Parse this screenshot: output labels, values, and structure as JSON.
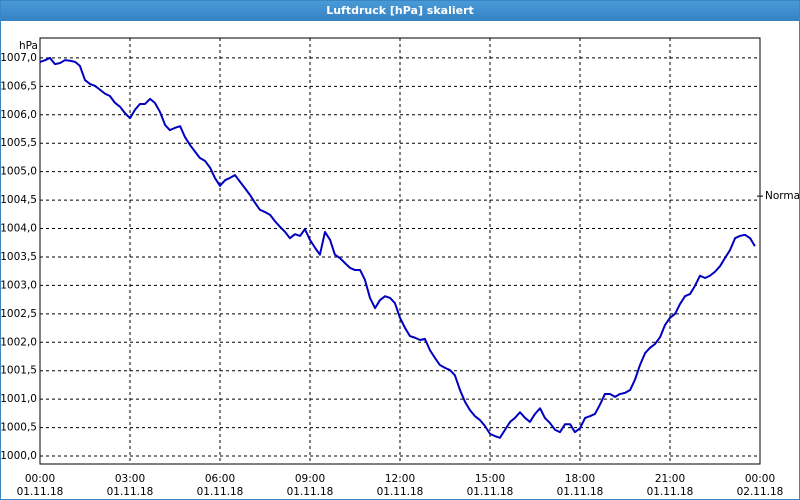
{
  "chart_data": {
    "type": "line",
    "window_title": "Luftdruck [hPa] skaliert",
    "y_label": "hPa",
    "annotation": {
      "label": "Normal",
      "value": 1004.57
    },
    "xlim": [
      0,
      24
    ],
    "ylim": [
      999.86,
      1007.35
    ],
    "grid": true,
    "xticks": [
      {
        "value": 0,
        "label": "00:00",
        "date": "01.11.18"
      },
      {
        "value": 3,
        "label": "03:00",
        "date": "01.11.18"
      },
      {
        "value": 6,
        "label": "06:00",
        "date": "01.11.18"
      },
      {
        "value": 9,
        "label": "09:00",
        "date": "01.11.18"
      },
      {
        "value": 12,
        "label": "12:00",
        "date": "01.11.18"
      },
      {
        "value": 15,
        "label": "15:00",
        "date": "01.11.18"
      },
      {
        "value": 18,
        "label": "18:00",
        "date": "01.11.18"
      },
      {
        "value": 21,
        "label": "21:00",
        "date": "01.11.18"
      },
      {
        "value": 24,
        "label": "00:00",
        "date": "02.11.18"
      }
    ],
    "yticks": [
      {
        "value": 1000,
        "label": "1000,0"
      },
      {
        "value": 1000.5,
        "label": "1000,5"
      },
      {
        "value": 1001,
        "label": "1001,0"
      },
      {
        "value": 1001.5,
        "label": "1001,5"
      },
      {
        "value": 1002,
        "label": "1002,0"
      },
      {
        "value": 1002.5,
        "label": "1002,5"
      },
      {
        "value": 1003,
        "label": "1003,0"
      },
      {
        "value": 1003.5,
        "label": "1003,5"
      },
      {
        "value": 1004,
        "label": "1004,0"
      },
      {
        "value": 1004.5,
        "label": "1004,5"
      },
      {
        "value": 1005,
        "label": "1005,0"
      },
      {
        "value": 1005.5,
        "label": "1005,5"
      },
      {
        "value": 1006,
        "label": "1006,0"
      },
      {
        "value": 1006.5,
        "label": "1006,5"
      },
      {
        "value": 1007,
        "label": "1007,0"
      }
    ],
    "x": [
      0,
      0.17,
      0.33,
      0.5,
      0.67,
      0.83,
      1,
      1.17,
      1.33,
      1.5,
      1.67,
      1.83,
      2,
      2.17,
      2.33,
      2.5,
      2.67,
      2.83,
      3,
      3.17,
      3.33,
      3.5,
      3.67,
      3.83,
      4,
      4.17,
      4.33,
      4.5,
      4.67,
      4.83,
      5,
      5.17,
      5.33,
      5.5,
      5.67,
      5.83,
      6,
      6.17,
      6.33,
      6.5,
      6.67,
      6.83,
      7,
      7.17,
      7.33,
      7.5,
      7.67,
      7.83,
      8,
      8.17,
      8.33,
      8.5,
      8.67,
      8.83,
      9,
      9.17,
      9.33,
      9.5,
      9.67,
      9.83,
      10,
      10.17,
      10.33,
      10.5,
      10.67,
      10.83,
      11,
      11.17,
      11.33,
      11.5,
      11.67,
      11.83,
      12,
      12.17,
      12.33,
      12.5,
      12.67,
      12.83,
      13,
      13.17,
      13.33,
      13.5,
      13.67,
      13.83,
      14,
      14.17,
      14.33,
      14.5,
      14.67,
      14.83,
      15,
      15.17,
      15.33,
      15.5,
      15.67,
      15.83,
      16,
      16.17,
      16.33,
      16.5,
      16.67,
      16.83,
      17,
      17.17,
      17.33,
      17.5,
      17.67,
      17.83,
      18,
      18.17,
      18.33,
      18.5,
      18.67,
      18.83,
      19,
      19.17,
      19.33,
      19.5,
      19.67,
      19.83,
      20,
      20.17,
      20.33,
      20.5,
      20.67,
      20.83,
      21,
      21.17,
      21.33,
      21.5,
      21.67,
      21.83,
      22,
      22.17,
      22.33,
      22.5,
      22.67,
      22.83,
      23,
      23.17,
      23.33,
      23.5,
      23.67,
      23.83
    ],
    "series": [
      {
        "color": "#0000c0",
        "values": [
          1006.93,
          1006.96,
          1007.0,
          1006.89,
          1006.91,
          1006.96,
          1006.95,
          1006.93,
          1006.86,
          1006.61,
          1006.54,
          1006.51,
          1006.44,
          1006.37,
          1006.33,
          1006.21,
          1006.14,
          1006.03,
          1005.94,
          1006.09,
          1006.19,
          1006.19,
          1006.28,
          1006.21,
          1006.05,
          1005.82,
          1005.73,
          1005.77,
          1005.8,
          1005.61,
          1005.47,
          1005.35,
          1005.24,
          1005.19,
          1005.07,
          1004.89,
          1004.75,
          1004.85,
          1004.89,
          1004.94,
          1004.82,
          1004.71,
          1004.59,
          1004.45,
          1004.33,
          1004.29,
          1004.24,
          1004.13,
          1004.03,
          1003.94,
          1003.83,
          1003.9,
          1003.87,
          1003.99,
          1003.8,
          1003.66,
          1003.54,
          1003.94,
          1003.8,
          1003.54,
          1003.48,
          1003.39,
          1003.31,
          1003.27,
          1003.27,
          1003.1,
          1002.78,
          1002.6,
          1002.74,
          1002.81,
          1002.78,
          1002.69,
          1002.43,
          1002.25,
          1002.11,
          1002.08,
          1002.04,
          1002.06,
          1001.86,
          1001.72,
          1001.6,
          1001.55,
          1001.51,
          1001.42,
          1001.16,
          1000.95,
          1000.81,
          1000.7,
          1000.63,
          1000.53,
          1000.39,
          1000.35,
          1000.32,
          1000.46,
          1000.6,
          1000.67,
          1000.77,
          1000.67,
          1000.6,
          1000.74,
          1000.84,
          1000.67,
          1000.58,
          1000.46,
          1000.42,
          1000.56,
          1000.56,
          1000.42,
          1000.49,
          1000.67,
          1000.7,
          1000.74,
          1000.91,
          1001.09,
          1001.09,
          1001.04,
          1001.09,
          1001.11,
          1001.16,
          1001.34,
          1001.6,
          1001.81,
          1001.9,
          1001.97,
          1002.09,
          1002.3,
          1002.43,
          1002.5,
          1002.67,
          1002.81,
          1002.85,
          1002.99,
          1003.17,
          1003.13,
          1003.17,
          1003.24,
          1003.34,
          1003.48,
          1003.62,
          1003.83,
          1003.87,
          1003.89,
          1003.83,
          1003.69
        ]
      }
    ]
  }
}
